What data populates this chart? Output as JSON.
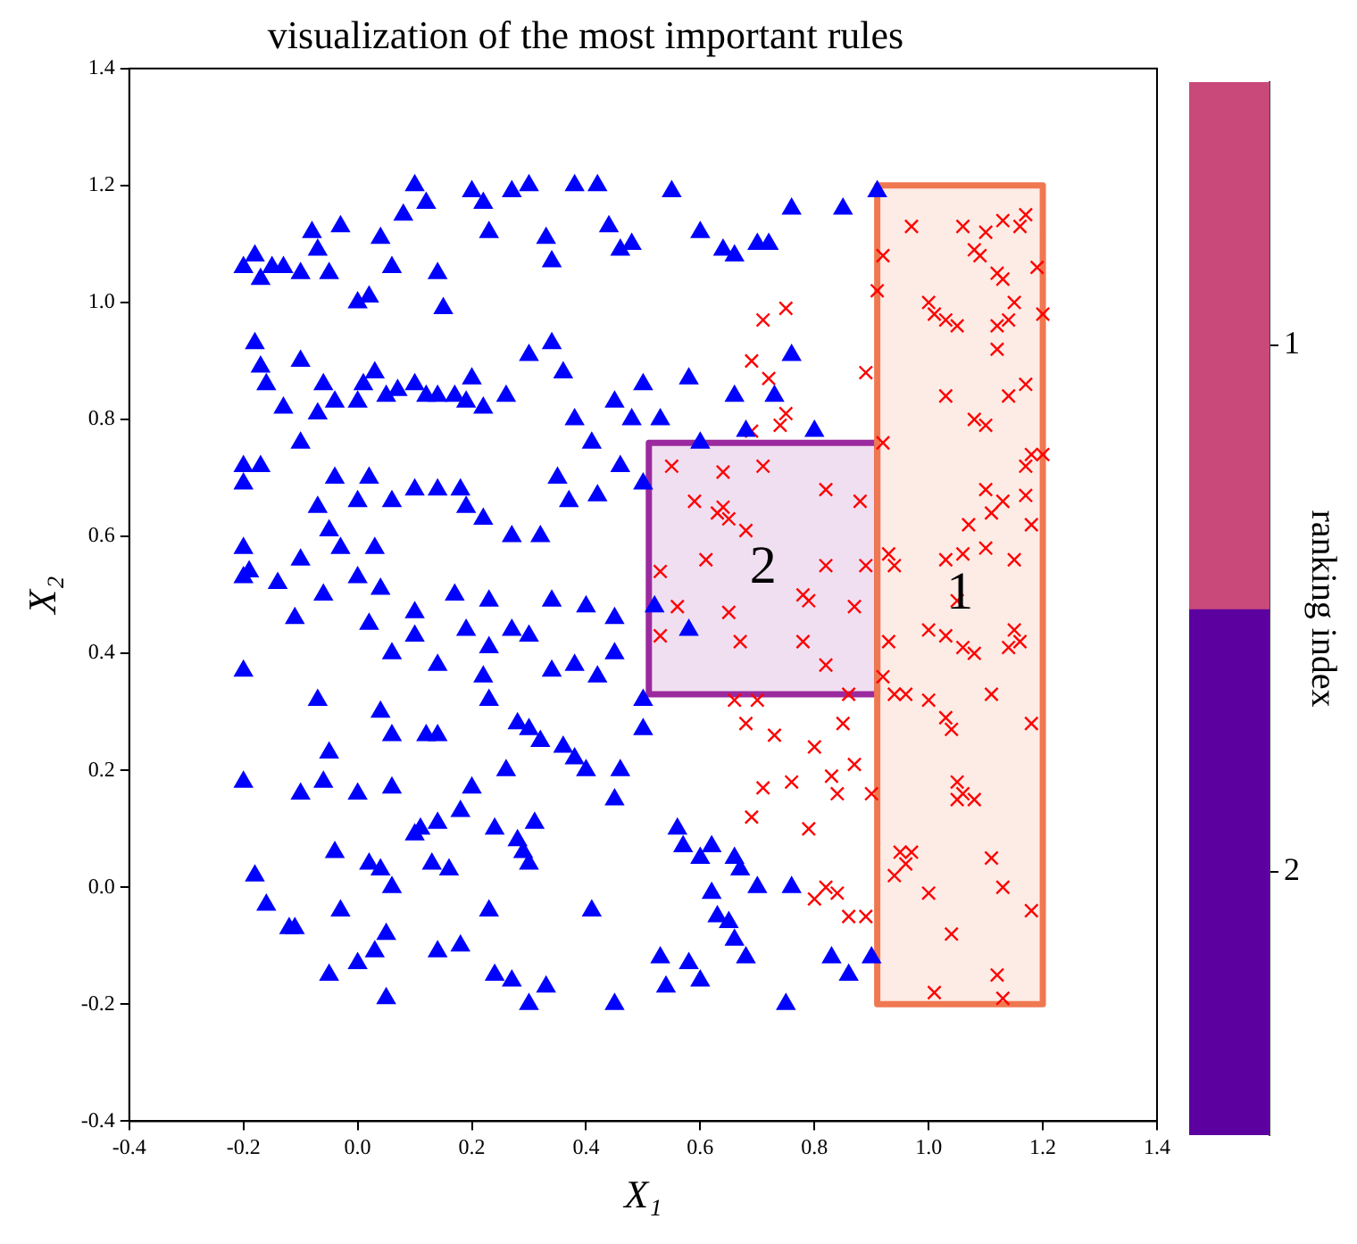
{
  "chart_data": {
    "type": "scatter",
    "title": "visualization of the most important rules",
    "xlabel": "X₁",
    "ylabel": "X₂",
    "clabel": "ranking index",
    "xlim": [
      -0.4,
      1.4
    ],
    "ylim": [
      -0.4,
      1.4
    ],
    "xticks": [
      -0.4,
      -0.2,
      {
        "value": 0,
        "label": "0.0"
      },
      0.2,
      0.4,
      0.6,
      0.8,
      {
        "value": 1,
        "label": "1.0"
      },
      1.2,
      1.4
    ],
    "yticks": [
      -0.4,
      -0.2,
      {
        "value": 0,
        "label": "0.0"
      },
      0.2,
      0.4,
      0.6,
      0.8,
      {
        "value": 1,
        "label": "1.0"
      },
      1.2,
      1.4
    ],
    "clim": [
      2.5,
      0.5
    ],
    "cticks": [
      1,
      2
    ],
    "grid": false,
    "legend": false,
    "annotations": [
      "1",
      "2"
    ],
    "series": [
      {
        "type": "area",
        "color": "#f07850",
        "marker": "none",
        "x": [
          0.91,
          1.2,
          1.2,
          0.91,
          0.91
        ],
        "values": [
          -0.2,
          -0.2,
          1.2,
          1.2,
          -0.2
        ]
      },
      {
        "type": "area",
        "color": "#9b2a9e",
        "marker": "none",
        "x": [
          0.51,
          0.91,
          0.91,
          0.51,
          0.51
        ],
        "values": [
          0.33,
          0.33,
          0.76,
          0.76,
          0.33
        ]
      },
      {
        "type": "scatter",
        "color": "#0000ff",
        "marker": "triangle",
        "x": [
          -0.2,
          -0.18,
          -0.17,
          -0.15,
          -0.13,
          -0.1,
          -0.08,
          -0.07,
          -0.05,
          -0.03,
          0.0,
          0.02,
          0.04,
          0.06,
          0.08,
          0.1,
          0.12,
          0.14,
          0.15,
          0.2,
          0.22,
          0.23,
          0.27,
          0.3,
          0.33,
          0.34,
          0.38,
          0.42,
          0.44,
          0.46,
          0.48,
          0.55,
          0.6,
          0.64,
          0.66,
          0.7,
          0.72,
          0.76,
          0.85,
          0.91,
          -0.18,
          -0.17,
          -0.16,
          -0.1,
          -0.13,
          -0.07,
          -0.06,
          -0.04,
          0.0,
          0.01,
          0.03,
          0.05,
          0.07,
          0.1,
          0.12,
          0.14,
          0.17,
          0.19,
          0.2,
          0.22,
          0.26,
          0.3,
          0.34,
          0.36,
          0.38,
          0.41,
          0.45,
          0.48,
          0.5,
          0.53,
          0.58,
          0.6,
          0.66,
          0.68,
          0.73,
          0.76,
          0.8,
          -0.2,
          -0.2,
          -0.17,
          -0.1,
          -0.07,
          -0.04,
          0.0,
          0.02,
          0.06,
          0.1,
          0.14,
          0.18,
          0.19,
          0.22,
          0.27,
          0.32,
          0.35,
          0.37,
          0.42,
          0.46,
          0.5,
          -0.2,
          -0.19,
          -0.1,
          -0.05,
          -0.03,
          0.03,
          0.04,
          0.1,
          0.17,
          0.23,
          0.27,
          0.34,
          0.4,
          0.45,
          0.52,
          0.58,
          -0.2,
          -0.14,
          -0.11,
          -0.06,
          0.0,
          0.02,
          0.06,
          0.1,
          0.14,
          0.19,
          0.23,
          0.3,
          0.34,
          0.38,
          0.42,
          0.45,
          0.5,
          -0.2,
          -0.07,
          -0.05,
          0.04,
          0.06,
          0.12,
          0.14,
          0.22,
          0.23,
          0.28,
          0.3,
          0.32,
          0.36,
          0.38,
          0.4,
          0.45,
          0.46,
          0.5,
          -0.2,
          -0.1,
          -0.06,
          0.0,
          0.06,
          0.1,
          0.11,
          0.14,
          0.18,
          0.2,
          0.24,
          0.26,
          0.28,
          0.29,
          0.31,
          -0.04,
          0.02,
          0.04,
          0.06,
          0.13,
          0.16,
          0.3,
          0.56,
          0.57,
          0.62,
          0.6,
          0.66,
          0.67,
          0.7,
          0.76,
          0.62,
          0.63,
          0.65,
          0.66,
          0.68,
          -0.18,
          -0.16,
          -0.12,
          -0.11,
          -0.03,
          0.05,
          0.03,
          0.0,
          -0.05,
          0.05,
          0.14,
          0.18,
          0.23,
          0.24,
          0.27,
          0.33,
          0.3,
          0.45,
          0.41,
          0.53,
          0.54,
          0.6,
          0.58,
          0.86,
          0.75,
          0.83,
          0.9
        ],
        "values": [
          1.06,
          1.08,
          1.04,
          1.06,
          1.06,
          1.05,
          1.12,
          1.09,
          1.05,
          1.13,
          1.0,
          1.01,
          1.11,
          1.06,
          1.15,
          1.2,
          1.17,
          1.05,
          0.99,
          1.19,
          1.17,
          1.12,
          1.19,
          1.2,
          1.11,
          1.07,
          1.2,
          1.2,
          1.13,
          1.09,
          1.1,
          1.19,
          1.12,
          1.09,
          1.08,
          1.1,
          1.1,
          1.16,
          1.16,
          1.19,
          0.93,
          0.89,
          0.86,
          0.9,
          0.82,
          0.81,
          0.86,
          0.83,
          0.83,
          0.86,
          0.88,
          0.84,
          0.85,
          0.86,
          0.84,
          0.84,
          0.84,
          0.83,
          0.87,
          0.82,
          0.84,
          0.91,
          0.93,
          0.88,
          0.8,
          0.76,
          0.83,
          0.8,
          0.86,
          0.8,
          0.87,
          0.76,
          0.84,
          0.78,
          0.84,
          0.91,
          0.78,
          0.72,
          0.69,
          0.72,
          0.76,
          0.65,
          0.7,
          0.66,
          0.7,
          0.66,
          0.68,
          0.68,
          0.68,
          0.65,
          0.63,
          0.6,
          0.6,
          0.7,
          0.66,
          0.67,
          0.72,
          0.69,
          0.58,
          0.54,
          0.56,
          0.61,
          0.58,
          0.58,
          0.51,
          0.47,
          0.5,
          0.49,
          0.44,
          0.49,
          0.48,
          0.46,
          0.48,
          0.44,
          0.53,
          0.52,
          0.46,
          0.5,
          0.53,
          0.45,
          0.4,
          0.43,
          0.38,
          0.44,
          0.41,
          0.43,
          0.37,
          0.38,
          0.36,
          0.4,
          0.32,
          0.37,
          0.32,
          0.23,
          0.3,
          0.26,
          0.26,
          0.26,
          0.36,
          0.32,
          0.28,
          0.27,
          0.25,
          0.24,
          0.22,
          0.2,
          0.15,
          0.2,
          0.27,
          0.18,
          0.16,
          0.18,
          0.16,
          0.17,
          0.09,
          0.1,
          0.11,
          0.13,
          0.17,
          0.1,
          0.2,
          0.08,
          0.06,
          0.11,
          0.06,
          0.04,
          0.03,
          0.0,
          0.04,
          0.03,
          0.04,
          0.1,
          0.07,
          0.07,
          0.05,
          0.05,
          0.03,
          0.0,
          0.0,
          -0.01,
          -0.05,
          -0.06,
          -0.09,
          -0.12,
          0.02,
          -0.03,
          -0.07,
          -0.07,
          -0.04,
          -0.08,
          -0.11,
          -0.13,
          -0.15,
          -0.19,
          -0.11,
          -0.1,
          -0.04,
          -0.15,
          -0.16,
          -0.17,
          -0.2,
          -0.2,
          -0.04,
          -0.12,
          -0.17,
          -0.16,
          -0.13,
          -0.15,
          -0.2,
          -0.12,
          -0.12
        ]
      },
      {
        "type": "scatter",
        "color": "#ff0000",
        "marker": "cross",
        "x": [
          0.97,
          1.06,
          1.1,
          1.13,
          1.16,
          1.17,
          1.08,
          1.09,
          0.92,
          1.12,
          1.13,
          1.19,
          1.15,
          1.2,
          1.14,
          1.0,
          1.01,
          1.03,
          1.05,
          1.12,
          0.91,
          1.12,
          1.14,
          1.17,
          1.03,
          1.08,
          1.1,
          0.92,
          1.18,
          1.2,
          1.17,
          1.17,
          1.18,
          1.1,
          1.11,
          1.13,
          1.07,
          1.1,
          1.15,
          0.93,
          0.94,
          1.03,
          1.06,
          1.15,
          1.14,
          1.16,
          1.03,
          1.05,
          1.06,
          1.08,
          0.93,
          1.0,
          0.92,
          0.94,
          0.96,
          1.0,
          1.03,
          1.04,
          1.11,
          1.18,
          1.05,
          1.05,
          1.06,
          1.08,
          0.95,
          0.96,
          0.97,
          0.94,
          1.0,
          1.11,
          1.13,
          1.18,
          1.04,
          1.12,
          1.01,
          1.13,
          0.71,
          0.75,
          0.69,
          0.72,
          0.89,
          0.75,
          0.69,
          0.74,
          0.55,
          0.64,
          0.71,
          0.59,
          0.63,
          0.64,
          0.65,
          0.82,
          0.88,
          0.68,
          0.53,
          0.61,
          0.82,
          0.89,
          0.56,
          0.65,
          0.78,
          0.79,
          0.87,
          0.53,
          0.67,
          0.78,
          0.82,
          0.86,
          0.66,
          0.7,
          0.68,
          0.73,
          0.85,
          0.8,
          0.87,
          0.71,
          0.76,
          0.83,
          0.84,
          0.9,
          0.69,
          0.79,
          0.82,
          0.84,
          0.8,
          0.86,
          0.89
        ],
        "values": [
          1.13,
          1.13,
          1.12,
          1.14,
          1.13,
          1.15,
          1.09,
          1.08,
          1.08,
          1.05,
          1.04,
          1.06,
          1.0,
          0.98,
          0.97,
          1.0,
          0.98,
          0.97,
          0.96,
          0.96,
          1.02,
          0.92,
          0.84,
          0.86,
          0.84,
          0.8,
          0.79,
          0.76,
          0.74,
          0.74,
          0.72,
          0.67,
          0.62,
          0.68,
          0.64,
          0.66,
          0.62,
          0.58,
          0.56,
          0.57,
          0.55,
          0.56,
          0.57,
          0.44,
          0.41,
          0.42,
          0.43,
          0.49,
          0.41,
          0.4,
          0.42,
          0.44,
          0.36,
          0.33,
          0.33,
          0.32,
          0.29,
          0.27,
          0.33,
          0.28,
          0.18,
          0.15,
          0.16,
          0.15,
          0.06,
          0.04,
          0.06,
          0.02,
          -0.01,
          0.05,
          0.0,
          -0.04,
          -0.08,
          -0.15,
          -0.18,
          -0.19,
          0.97,
          0.99,
          0.9,
          0.87,
          0.88,
          0.81,
          0.78,
          0.79,
          0.72,
          0.71,
          0.72,
          0.66,
          0.64,
          0.65,
          0.63,
          0.68,
          0.66,
          0.61,
          0.54,
          0.56,
          0.55,
          0.55,
          0.48,
          0.47,
          0.5,
          0.49,
          0.48,
          0.43,
          0.42,
          0.42,
          0.38,
          0.33,
          0.32,
          0.32,
          0.28,
          0.26,
          0.28,
          0.24,
          0.21,
          0.17,
          0.18,
          0.19,
          0.16,
          0.16,
          0.12,
          0.1,
          0.0,
          -0.01,
          -0.02,
          -0.05,
          -0.05
        ]
      }
    ]
  }
}
